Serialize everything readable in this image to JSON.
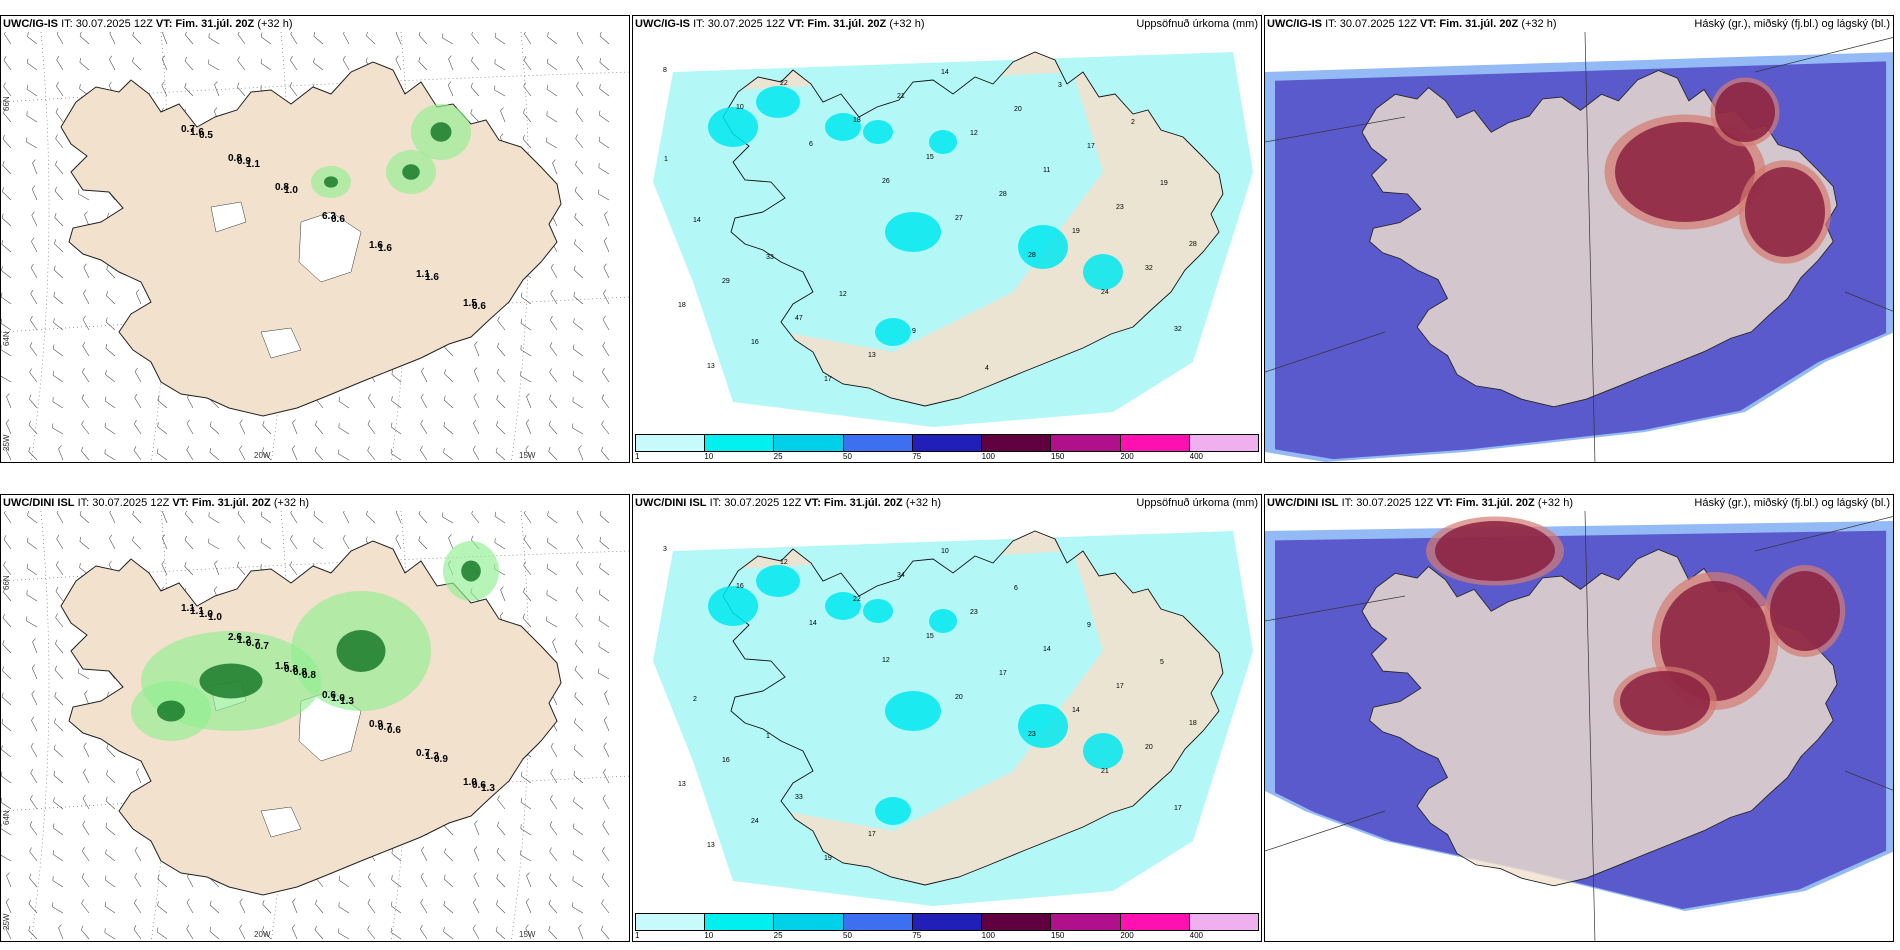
{
  "rows": [
    {
      "model": "UWC/IG-IS",
      "init": "IT: 30.07.2025 12Z",
      "vt_label": "VT: Fim. 31.júl. 20Z",
      "lead": "(+32 h)",
      "precip_values": [
        {
          "v": "8"
        },
        {
          "v": "10"
        },
        {
          "v": "6"
        },
        {
          "v": "26"
        },
        {
          "v": "27"
        },
        {
          "v": "28"
        },
        {
          "v": "24"
        },
        {
          "v": "32"
        },
        {
          "v": "13"
        },
        {
          "v": "22"
        },
        {
          "v": "18"
        },
        {
          "v": "15"
        },
        {
          "v": "28"
        },
        {
          "v": "19"
        },
        {
          "v": "32"
        },
        {
          "v": "18"
        },
        {
          "v": "16"
        },
        {
          "v": "17"
        },
        {
          "v": "21"
        },
        {
          "v": "12"
        },
        {
          "v": "11"
        },
        {
          "v": "23"
        },
        {
          "v": "28"
        },
        {
          "v": "29"
        },
        {
          "v": "47"
        },
        {
          "v": "13"
        },
        {
          "v": "14"
        },
        {
          "v": "20"
        },
        {
          "v": "17"
        },
        {
          "v": "19"
        },
        {
          "v": "14"
        },
        {
          "v": "33"
        },
        {
          "v": "12"
        },
        {
          "v": "9"
        },
        {
          "v": "4"
        },
        {
          "v": "3"
        },
        {
          "v": "2"
        },
        {
          "v": "1"
        }
      ],
      "wind_values": [
        "0.7",
        "0.8",
        "0.8",
        "6.3",
        "1.6",
        "1.1",
        "1.5",
        "1.6",
        "0.9",
        "1.0",
        "0.6",
        "1.6",
        "1.6",
        "0.6",
        "0.5",
        "1.1"
      ]
    },
    {
      "model": "UWC/DINI ISL",
      "init": "IT: 30.07.2025 12Z",
      "vt_label": "VT: Fim. 31.júl. 20Z",
      "lead": "(+32 h)",
      "precip_values": [
        {
          "v": "3"
        },
        {
          "v": "16"
        },
        {
          "v": "14"
        },
        {
          "v": "12"
        },
        {
          "v": "20"
        },
        {
          "v": "23"
        },
        {
          "v": "21"
        },
        {
          "v": "17"
        },
        {
          "v": "13"
        },
        {
          "v": "12"
        },
        {
          "v": "22"
        },
        {
          "v": "15"
        },
        {
          "v": "17"
        },
        {
          "v": "14"
        },
        {
          "v": "20"
        },
        {
          "v": "13"
        },
        {
          "v": "24"
        },
        {
          "v": "19"
        },
        {
          "v": "34"
        },
        {
          "v": "23"
        },
        {
          "v": "14"
        },
        {
          "v": "17"
        },
        {
          "v": "18"
        },
        {
          "v": "16"
        },
        {
          "v": "33"
        },
        {
          "v": "17"
        },
        {
          "v": "10"
        },
        {
          "v": "6"
        },
        {
          "v": "9"
        },
        {
          "v": "5"
        },
        {
          "v": "2"
        },
        {
          "v": "1"
        }
      ],
      "wind_values": [
        "1.1",
        "2.6",
        "1.5",
        "0.6",
        "0.9",
        "0.7",
        "1.0",
        "1.1",
        "1.2",
        "0.8",
        "1.0",
        "0.7",
        "1.3",
        "0.6",
        "1.0",
        "0.7",
        "0.8",
        "1.3",
        "0.6",
        "0.9",
        "1.3",
        "1.0",
        "0.7",
        "0.8"
      ]
    }
  ],
  "precip_title": "Uppsöfnuð úrkoma (mm)",
  "cloud_title": "Háský (gr.), miðský (fj.bl.) og lágský (bl.)",
  "colorbar": {
    "ticks": [
      "1",
      "10",
      "25",
      "50",
      "75",
      "100",
      "150",
      "200",
      "400"
    ],
    "colors": [
      "#c7fafa",
      "#00f0f0",
      "#00d0e8",
      "#3c70f0",
      "#2020b8",
      "#600040",
      "#b0108c",
      "#ff10b0",
      "#f0b0f0"
    ]
  },
  "lat_labels": [
    "66N",
    "64N",
    "25W"
  ],
  "lon_labels": [
    "20W",
    "15W"
  ],
  "colors": {
    "land": "#f1e1cd",
    "precip_light": "#b4f7f7",
    "precip_mid": "#00e8f0",
    "cloud_low": "#5a5acd",
    "cloud_low_edge": "#4d8cf0",
    "cloud_high": "#8a2040",
    "cloud_mid": "#d47a70",
    "wind_green": "#90ee90",
    "wind_dark": "#1a7a2a"
  }
}
